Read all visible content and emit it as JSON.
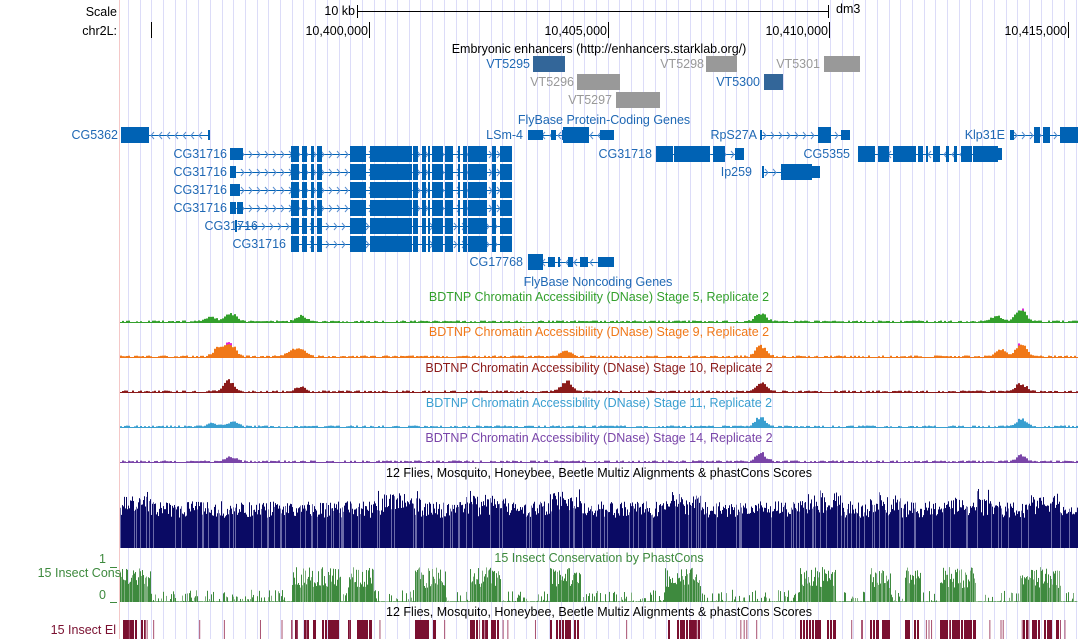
{
  "header": {
    "scale_label": "Scale",
    "chrom_label": "chr2L:",
    "scale_bar_text": "10 kb",
    "assembly": "dm3",
    "ticks": [
      "10,400,000",
      "10,405,000",
      "10,410,000",
      "10,415,000"
    ]
  },
  "enhancers": {
    "title": "Embryonic enhancers (http://enhancers.starklab.org/)",
    "items": [
      {
        "name": "VT5295",
        "active": true
      },
      {
        "name": "VT5296",
        "active": false
      },
      {
        "name": "VT5297",
        "active": false
      },
      {
        "name": "VT5298",
        "active": false
      },
      {
        "name": "VT5300",
        "active": true
      },
      {
        "name": "VT5301",
        "active": false
      }
    ]
  },
  "genes": {
    "title": "FlyBase Protein-Coding Genes",
    "noncoding_title": "FlyBase Noncoding Genes",
    "items": [
      "CG5362",
      "LSm-4",
      "RpS27A",
      "Klp31E",
      "CG31716",
      "CG31718",
      "CG5355",
      "CG31716",
      "Ip259",
      "CG31716",
      "CG31716",
      "CG31716",
      "CG31716",
      "CG17768"
    ]
  },
  "dnase_tracks": [
    {
      "title": "BDTNP Chromatin Accessibility (DNase) Stage 5, Replicate 2",
      "color": "#33a02c"
    },
    {
      "title": "BDTNP Chromatin Accessibility (DNase) Stage 9, Replicate 2",
      "color": "#f07818"
    },
    {
      "title": "BDTNP Chromatin Accessibility (DNase) Stage 10, Replicate 2",
      "color": "#8b1a1a"
    },
    {
      "title": "BDTNP Chromatin Accessibility (DNase) Stage 11, Replicate 2",
      "color": "#3a9fd0"
    },
    {
      "title": "BDTNP Chromatin Accessibility (DNase) Stage 14, Replicate 2",
      "color": "#7a45a8"
    }
  ],
  "conservation": {
    "multiz_title": "12 Flies, Mosquito, Honeybee, Beetle Multiz Alignments & phastCons Scores",
    "phastcons_title": "15 Insect Conservation by PhastCons",
    "cons_label": "15 Insect Cons",
    "axis_max": "1",
    "axis_min": "0",
    "elements_title": "12 Flies, Mosquito, Honeybee, Beetle Multiz Alignments & phastCons Scores",
    "elements_label": "15 Insect El",
    "multiz_color": "#0a0a64",
    "cons_color": "#3e8a3e",
    "elements_color": "#7a1030"
  }
}
